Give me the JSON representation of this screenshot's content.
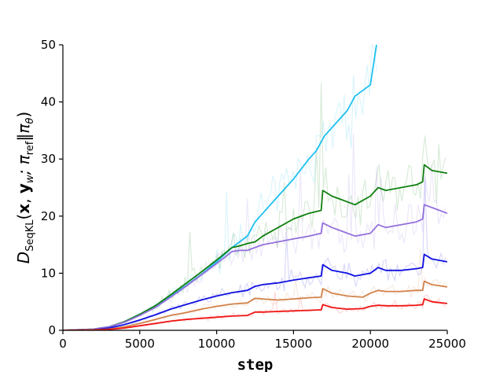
{
  "chart_data": {
    "type": "line",
    "xlabel": "step",
    "ylabel": {
      "D": "D",
      "sub1": "SeqKL",
      "open": "(",
      "x": "x",
      "comma": ", ",
      "y": "y",
      "sub_w": "w",
      "semi": "; π",
      "sub_ref": "ref",
      "bar": "‖π",
      "sub_theta": "θ",
      "close": ")"
    },
    "xlim": [
      0,
      25000
    ],
    "ylim": [
      0,
      50
    ],
    "xticks": [
      0,
      5000,
      10000,
      15000,
      20000,
      25000
    ],
    "xtick_labels": [
      "0",
      "5000",
      "10000",
      "15000",
      "20000",
      "25000"
    ],
    "yticks": [
      0,
      10,
      20,
      30,
      40,
      50
    ],
    "ytick_labels": [
      "0",
      "10",
      "20",
      "30",
      "40",
      "50"
    ],
    "grid": false,
    "series": [
      {
        "color": "#1ec0f0",
        "x": [
          0,
          2000,
          3000,
          4000,
          5000,
          6000,
          7000,
          8000,
          9000,
          10000,
          11000,
          11500,
          12000,
          12500,
          13000,
          14000,
          15000,
          16000,
          16500,
          17000,
          18000,
          18500,
          19000,
          20000,
          20400
        ],
        "y": [
          0,
          0.2,
          0.6,
          1.5,
          2.8,
          4.2,
          6.0,
          7.8,
          9.8,
          12.0,
          14.5,
          15.5,
          16.5,
          19.0,
          20.5,
          23.5,
          26.5,
          30.0,
          31.5,
          34.0,
          37.0,
          38.5,
          41.0,
          43.0,
          50.0
        ]
      },
      {
        "color": "#108010",
        "x": [
          0,
          2000,
          3000,
          4000,
          5000,
          6000,
          7000,
          8000,
          9000,
          10000,
          11000,
          11500,
          12000,
          12500,
          13000,
          14000,
          15000,
          16000,
          16800,
          16900,
          17500,
          18000,
          19000,
          20000,
          20500,
          21000,
          22000,
          23000,
          23400,
          23500,
          24000,
          25000
        ],
        "y": [
          0,
          0.2,
          0.6,
          1.5,
          2.8,
          4.3,
          6.2,
          8.2,
          10.2,
          12.3,
          14.5,
          14.8,
          15.2,
          15.5,
          16.5,
          18.0,
          19.5,
          20.5,
          21.0,
          24.5,
          23.5,
          23.0,
          22.0,
          23.5,
          25.0,
          24.5,
          25.0,
          25.5,
          26.0,
          29.0,
          28.0,
          27.5
        ]
      },
      {
        "color": "#9370db",
        "x": [
          0,
          2000,
          3000,
          4000,
          5000,
          6000,
          7000,
          8000,
          9000,
          10000,
          11000,
          11500,
          12000,
          12500,
          13000,
          14000,
          15000,
          16000,
          16800,
          16900,
          17500,
          18000,
          19000,
          20000,
          20500,
          21000,
          22000,
          23000,
          23400,
          23500,
          24000,
          25000
        ],
        "y": [
          0,
          0.2,
          0.6,
          1.4,
          2.6,
          4.0,
          5.8,
          7.7,
          9.7,
          11.7,
          13.8,
          14.0,
          14.0,
          14.5,
          15.0,
          15.5,
          16.0,
          16.5,
          17.0,
          18.8,
          18.0,
          17.5,
          16.5,
          17.0,
          18.5,
          18.0,
          18.5,
          19.0,
          19.5,
          22.0,
          21.5,
          20.5
        ]
      },
      {
        "color": "#1010e0",
        "x": [
          0,
          2000,
          3000,
          4000,
          5000,
          6000,
          7000,
          8000,
          9000,
          10000,
          11000,
          12000,
          12500,
          13000,
          14000,
          15000,
          16000,
          16800,
          16900,
          17500,
          18500,
          19000,
          20000,
          20500,
          21000,
          22000,
          23000,
          23400,
          23500,
          24000,
          25000
        ],
        "y": [
          0,
          0.1,
          0.4,
          1.0,
          1.8,
          2.7,
          3.7,
          4.5,
          5.3,
          6.0,
          6.6,
          7.0,
          7.7,
          8.0,
          8.3,
          8.8,
          9.2,
          9.5,
          11.5,
          10.5,
          10.0,
          9.5,
          10.0,
          11.0,
          10.5,
          10.5,
          10.8,
          11.0,
          13.3,
          12.5,
          12.0
        ]
      },
      {
        "color": "#d2824a",
        "x": [
          0,
          2000,
          3000,
          4000,
          5000,
          6000,
          7000,
          8000,
          9000,
          10000,
          11000,
          12000,
          12500,
          13000,
          14000,
          15000,
          16000,
          16800,
          16900,
          17500,
          18500,
          19500,
          20000,
          20500,
          21000,
          22000,
          23000,
          23400,
          23500,
          24000,
          25000
        ],
        "y": [
          0,
          0.1,
          0.2,
          0.6,
          1.2,
          1.9,
          2.6,
          3.1,
          3.7,
          4.2,
          4.6,
          4.8,
          5.6,
          5.5,
          5.3,
          5.5,
          5.7,
          5.8,
          7.3,
          6.5,
          6.0,
          5.8,
          6.5,
          7.0,
          6.8,
          6.8,
          7.0,
          7.0,
          8.6,
          8.0,
          7.6
        ]
      },
      {
        "color": "#f01414",
        "x": [
          0,
          2000,
          3000,
          4000,
          5000,
          6000,
          7000,
          8000,
          9000,
          10000,
          11000,
          12000,
          12500,
          13000,
          14000,
          15000,
          16000,
          16800,
          16900,
          17500,
          18500,
          19500,
          20000,
          20500,
          21000,
          22000,
          23000,
          23400,
          23500,
          24000,
          25000
        ],
        "y": [
          0,
          0.05,
          0.15,
          0.4,
          0.8,
          1.2,
          1.6,
          1.9,
          2.1,
          2.3,
          2.5,
          2.6,
          3.2,
          3.2,
          3.3,
          3.4,
          3.5,
          3.6,
          4.5,
          4.0,
          3.7,
          3.8,
          4.2,
          4.4,
          4.3,
          4.3,
          4.4,
          4.5,
          5.5,
          5.0,
          4.7
        ]
      }
    ]
  }
}
